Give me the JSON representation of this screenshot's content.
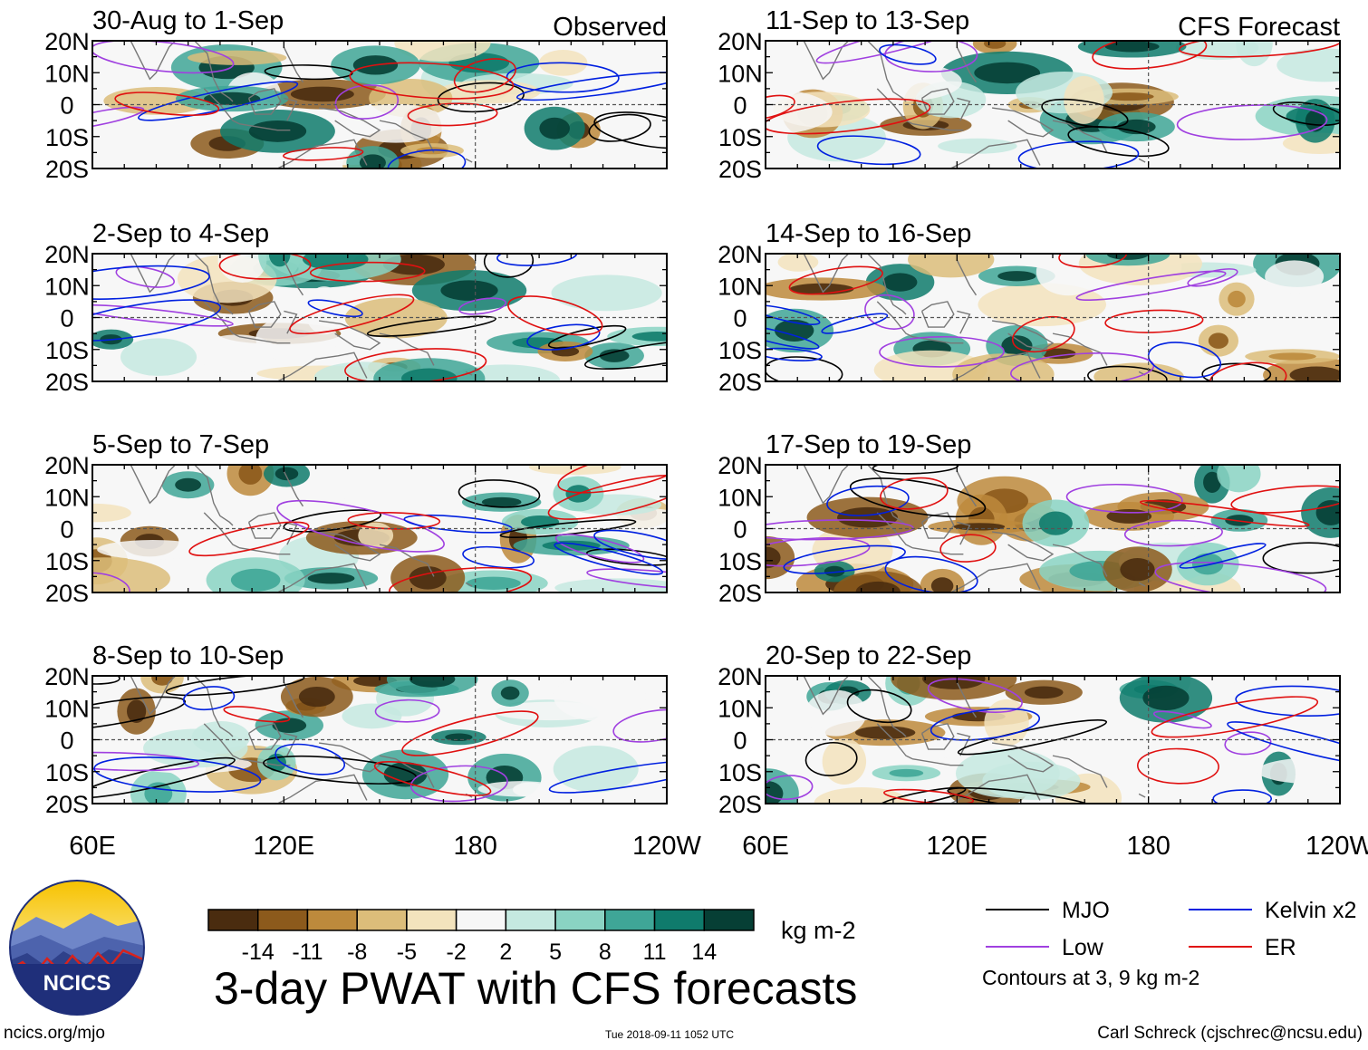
{
  "figure": {
    "title": "3-day PWAT with CFS forecasts",
    "units": "kg m-2",
    "contour_note": "Contours at 3, 9 kg m-2",
    "website": "ncics.org/mjo",
    "timestamp": "Tue 2018-09-11 1052 UTC",
    "author": "Carl Schreck (cjschrec@ncsu.edu)",
    "logo_text": "NCICS",
    "column_labels": {
      "observed": "Observed",
      "forecast": "CFS Forecast"
    }
  },
  "chart_data": {
    "type": "heatmap",
    "variable": "PWAT anomaly",
    "units": "kg m-2",
    "x_axis": {
      "ticks": [
        "60E",
        "120E",
        "180",
        "120W"
      ],
      "range_deg_east": [
        60,
        240
      ]
    },
    "y_axis": {
      "ticks": [
        "20N",
        "10N",
        "0",
        "10S",
        "20S"
      ],
      "range_deg_north": [
        -20,
        20
      ]
    },
    "colorbar": {
      "boundaries": [
        "-14",
        "-11",
        "-8",
        "-5",
        "-2",
        "2",
        "5",
        "8",
        "11",
        "14"
      ],
      "colors": [
        "#4a2c0f",
        "#8c5a1c",
        "#bd8a3c",
        "#dcbd7a",
        "#f3e3bd",
        "#f7f7f7",
        "#c5e9e0",
        "#8ad3c3",
        "#3fa697",
        "#0f7b6c",
        "#063f35"
      ]
    },
    "contour_legend": [
      {
        "name": "MJO",
        "color": "#000000"
      },
      {
        "name": "Low",
        "color": "#a040e0"
      },
      {
        "name": "Kelvin x2",
        "color": "#0020e0"
      },
      {
        "name": "ER",
        "color": "#e01010"
      }
    ],
    "contour_levels": [
      3,
      9
    ],
    "panels": [
      {
        "label": "30-Aug to 1-Sep",
        "source": "Observed"
      },
      {
        "label": "2-Sep to 4-Sep",
        "source": "Observed"
      },
      {
        "label": "5-Sep to 7-Sep",
        "source": "Observed"
      },
      {
        "label": "8-Sep to 10-Sep",
        "source": "Observed"
      },
      {
        "label": "11-Sep to 13-Sep",
        "source": "CFS Forecast"
      },
      {
        "label": "14-Sep to 16-Sep",
        "source": "CFS Forecast"
      },
      {
        "label": "17-Sep to 19-Sep",
        "source": "CFS Forecast"
      },
      {
        "label": "20-Sep to 22-Sep",
        "source": "CFS Forecast"
      }
    ]
  }
}
